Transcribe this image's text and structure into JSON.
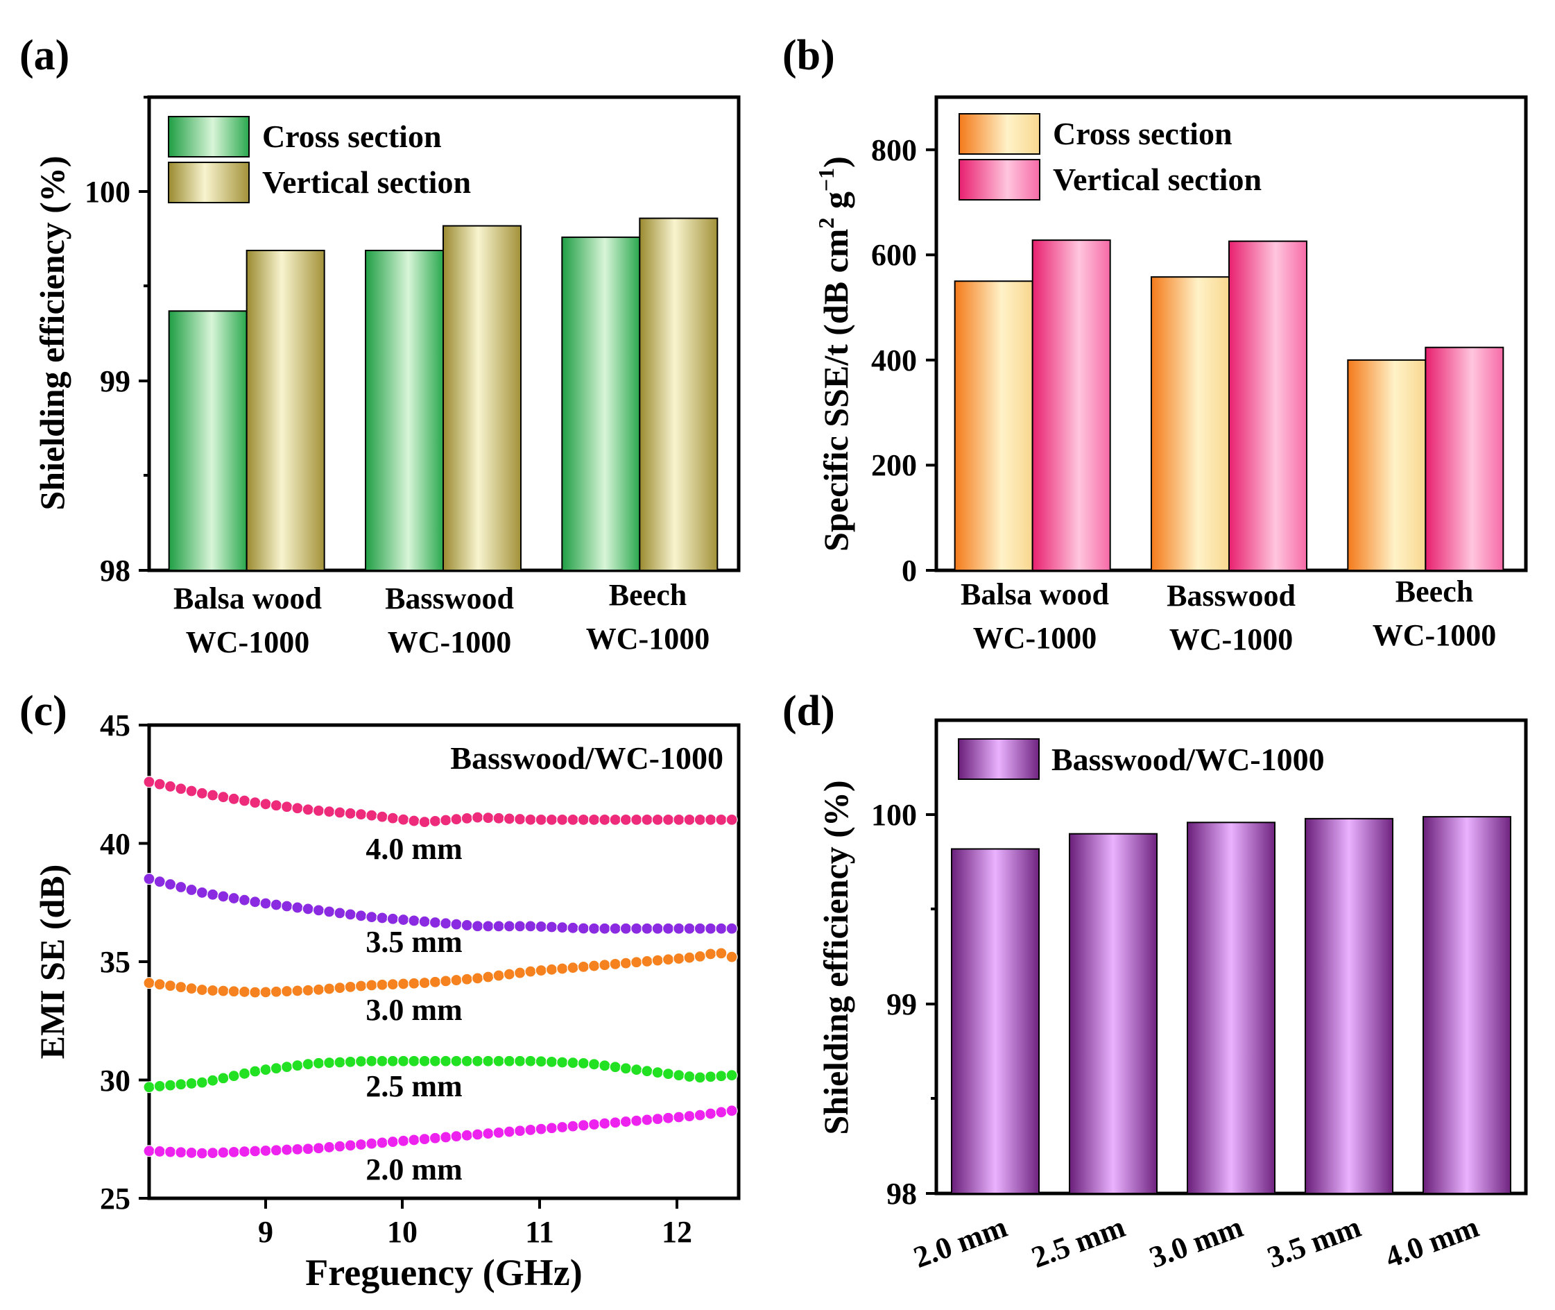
{
  "panels": {
    "a": {
      "label": "(a)",
      "ylabel": "Shielding efficiency (%)",
      "yticks": [
        "98",
        "99",
        "100"
      ],
      "legend": [
        "Cross section",
        "Vertical section"
      ]
    },
    "b": {
      "label": "(b)",
      "ylabel_main": "Specific SSE/t (dB cm",
      "ylabel_sup1": "2",
      "ylabel_mid": " g",
      "ylabel_sup2": "−1",
      "ylabel_end": ")",
      "yticks": [
        "0",
        "200",
        "400",
        "600",
        "800"
      ],
      "legend": [
        "Cross section",
        "Vertical section"
      ]
    },
    "c": {
      "label": "(c)",
      "ylabel": "EMI SE (dB)",
      "xlabel": "Freguency (GHz)",
      "yticks": [
        "25",
        "30",
        "35",
        "40",
        "45"
      ],
      "xticks": [
        "9",
        "10",
        "11",
        "12"
      ],
      "annotation": "Basswood/WC-1000"
    },
    "d": {
      "label": "(d)",
      "ylabel": "Shielding efficiency (%)",
      "yticks": [
        "98",
        "99",
        "100"
      ],
      "legend": [
        "Basswood/WC-1000"
      ]
    }
  },
  "categories_ab": [
    {
      "line1": "Balsa wood",
      "line2": "WC-1000"
    },
    {
      "line1": "Basswood",
      "line2": "WC-1000"
    },
    {
      "line1": "Beech",
      "line2": "WC-1000"
    }
  ],
  "colors": {
    "green": "#2fbf5a",
    "khaki": "#a89a3e",
    "orange": "#f48a2a",
    "pink": "#ee3f8a",
    "purple": "#7a2f8a",
    "lightpurple": "#e8a8ff",
    "s40": "#ee2a7b",
    "s35": "#8a2be2",
    "s30": "#f5821f",
    "s25": "#22e022",
    "s20": "#ee22ee"
  },
  "chart_data": [
    {
      "panel": "a",
      "type": "bar",
      "title": "",
      "xlabel": "",
      "ylabel": "Shielding efficiency (%)",
      "ylim": [
        98,
        100.5
      ],
      "categories": [
        "Balsa wood WC-1000",
        "Basswood WC-1000",
        "Beech WC-1000"
      ],
      "series": [
        {
          "name": "Cross section",
          "values": [
            99.37,
            99.69,
            99.76
          ]
        },
        {
          "name": "Vertical section",
          "values": [
            99.69,
            99.82,
            99.86
          ]
        }
      ]
    },
    {
      "panel": "b",
      "type": "bar",
      "title": "",
      "xlabel": "",
      "ylabel": "Specific SSE/t (dB cm2 g−1)",
      "ylim": [
        0,
        900
      ],
      "categories": [
        "Balsa wood WC-1000",
        "Basswood WC-1000",
        "Beech WC-1000"
      ],
      "series": [
        {
          "name": "Cross section",
          "values": [
            550,
            558,
            400
          ]
        },
        {
          "name": "Vertical section",
          "values": [
            628,
            626,
            424
          ]
        }
      ]
    },
    {
      "panel": "c",
      "type": "line",
      "title": "",
      "xlabel": "Freguency (GHz)",
      "ylabel": "EMI SE (dB)",
      "xlim": [
        8.2,
        12.5
      ],
      "ylim": [
        25,
        45
      ],
      "series": [
        {
          "name": "4.0 mm",
          "x": [
            8.2,
            8.6,
            9.0,
            9.4,
            9.8,
            10.2,
            10.6,
            11.0,
            11.4,
            11.8,
            12.2,
            12.45
          ],
          "y": [
            42.6,
            42.1,
            41.7,
            41.4,
            41.2,
            40.9,
            41.1,
            41.0,
            41.0,
            41.0,
            41.0,
            41.0
          ]
        },
        {
          "name": "3.5 mm",
          "x": [
            8.2,
            8.6,
            9.0,
            9.4,
            9.8,
            10.2,
            10.6,
            11.0,
            11.4,
            11.8,
            12.2,
            12.45
          ],
          "y": [
            38.5,
            37.9,
            37.5,
            37.2,
            36.9,
            36.7,
            36.5,
            36.5,
            36.4,
            36.4,
            36.4,
            36.4
          ]
        },
        {
          "name": "3.0 mm",
          "x": [
            8.2,
            8.6,
            9.0,
            9.4,
            9.8,
            10.2,
            10.6,
            11.0,
            11.4,
            11.8,
            12.2,
            12.35,
            12.45
          ],
          "y": [
            34.1,
            33.8,
            33.7,
            33.8,
            34.0,
            34.1,
            34.3,
            34.6,
            34.8,
            35.0,
            35.2,
            35.4,
            35.2
          ]
        },
        {
          "name": "2.5 mm",
          "x": [
            8.2,
            8.6,
            9.0,
            9.4,
            9.8,
            10.2,
            10.6,
            11.0,
            11.4,
            11.8,
            12.2,
            12.45
          ],
          "y": [
            29.7,
            29.9,
            30.4,
            30.7,
            30.8,
            30.8,
            30.8,
            30.8,
            30.7,
            30.4,
            30.1,
            30.2
          ]
        },
        {
          "name": "2.0 mm",
          "x": [
            8.2,
            8.6,
            9.0,
            9.4,
            9.8,
            10.2,
            10.6,
            11.0,
            11.4,
            11.8,
            12.2,
            12.45
          ],
          "y": [
            27.0,
            26.9,
            27.0,
            27.1,
            27.3,
            27.5,
            27.7,
            27.9,
            28.1,
            28.3,
            28.5,
            28.7
          ]
        }
      ]
    },
    {
      "panel": "d",
      "type": "bar",
      "title": "",
      "xlabel": "",
      "ylabel": "Shielding efficiency (%)",
      "ylim": [
        98,
        100.5
      ],
      "categories": [
        "2.0 mm",
        "2.5 mm",
        "3.0 mm",
        "3.5 mm",
        "4.0 mm"
      ],
      "series": [
        {
          "name": "Basswood/WC-1000",
          "values": [
            99.82,
            99.9,
            99.96,
            99.98,
            99.99
          ]
        }
      ]
    }
  ]
}
